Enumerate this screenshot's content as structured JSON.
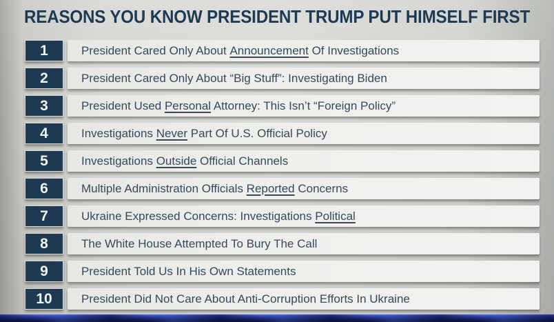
{
  "slide": {
    "title": "REASONS YOU KNOW PRESIDENT TRUMP PUT HIMSELF FIRST",
    "items": [
      {
        "number": "1",
        "segments": [
          {
            "text": "President Cared Only About "
          },
          {
            "text": "Announcement",
            "underline": true
          },
          {
            "text": " Of Investigations"
          }
        ]
      },
      {
        "number": "2",
        "segments": [
          {
            "text": "President Cared Only About “Big Stuff”: Investigating Biden"
          }
        ]
      },
      {
        "number": "3",
        "segments": [
          {
            "text": "President Used "
          },
          {
            "text": "Personal",
            "underline": true
          },
          {
            "text": " Attorney: This Isn’t “Foreign Policy”"
          }
        ]
      },
      {
        "number": "4",
        "segments": [
          {
            "text": "Investigations "
          },
          {
            "text": "Never",
            "underline": true
          },
          {
            "text": " Part Of U.S. Official Policy"
          }
        ]
      },
      {
        "number": "5",
        "segments": [
          {
            "text": "Investigations "
          },
          {
            "text": "Outside",
            "underline": true
          },
          {
            "text": " Official Channels"
          }
        ]
      },
      {
        "number": "6",
        "segments": [
          {
            "text": "Multiple Administration Officials "
          },
          {
            "text": "Reported",
            "underline": true
          },
          {
            "text": " Concerns"
          }
        ]
      },
      {
        "number": "7",
        "segments": [
          {
            "text": "Ukraine Expressed Concerns: Investigations "
          },
          {
            "text": "Political",
            "underline": true
          }
        ]
      },
      {
        "number": "8",
        "segments": [
          {
            "text": "The White House Attempted To Bury The Call"
          }
        ]
      },
      {
        "number": "9",
        "segments": [
          {
            "text": "President Told Us In His Own Statements"
          }
        ]
      },
      {
        "number": "10",
        "segments": [
          {
            "text": "President Did Not Care About Anti-Corruption Efforts In Ukraine"
          }
        ]
      }
    ]
  },
  "colors": {
    "navy": "#1d3a52",
    "title_text": "#1e3a52",
    "item_text": "#33495d",
    "bar_background": "#eceee9",
    "badge_text": "#f4f6f5",
    "page_background": "#d7d8d3",
    "bottom_strip_blue": "#2c3e9d",
    "bottom_strip_dark": "#0a1133"
  }
}
